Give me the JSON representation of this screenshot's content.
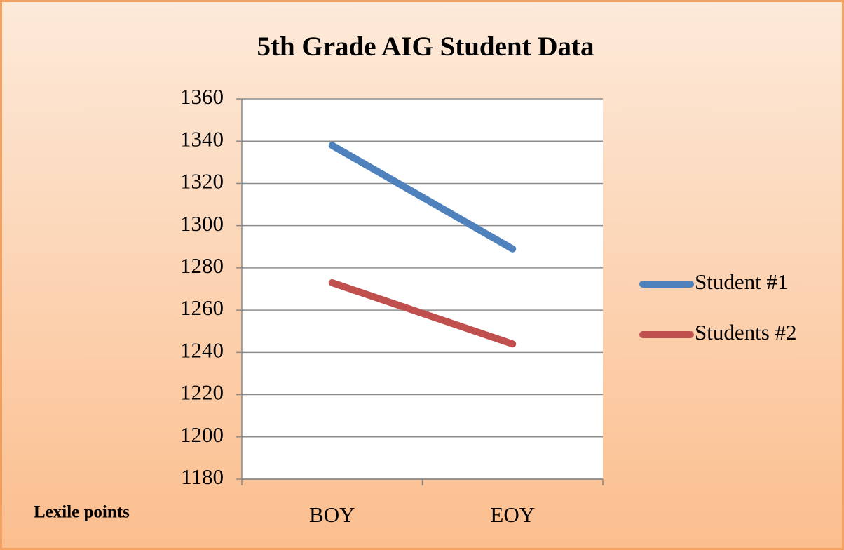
{
  "chart_data": {
    "type": "line",
    "title": "5th Grade AIG Student Data",
    "ylabel": "Lexile points",
    "categories": [
      "BOY",
      "EOY"
    ],
    "series": [
      {
        "name": "Student #1",
        "color": "#4f81bd",
        "values": [
          1338,
          1289
        ]
      },
      {
        "name": "Students #2",
        "color": "#c0504d",
        "values": [
          1273,
          1244
        ]
      }
    ],
    "ylim": [
      1180,
      1360
    ],
    "yticks": [
      1180,
      1200,
      1220,
      1240,
      1260,
      1280,
      1300,
      1320,
      1340,
      1360
    ],
    "grid": true,
    "legend": "right"
  }
}
